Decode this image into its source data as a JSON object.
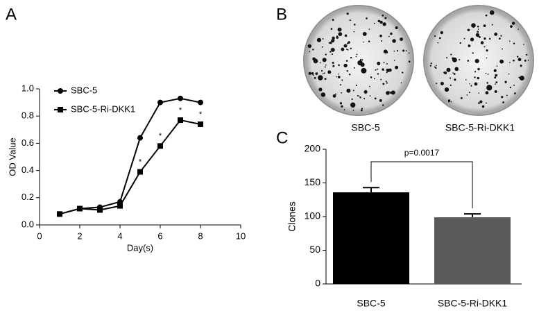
{
  "chart_data": [
    {
      "panel": "A",
      "type": "line",
      "xlabel": "Day(s)",
      "ylabel": "OD Value",
      "x": [
        1,
        2,
        3,
        4,
        5,
        6,
        7,
        8
      ],
      "series": [
        {
          "name": "SBC-5",
          "color": "#000000",
          "marker": "circle",
          "values": [
            0.08,
            0.12,
            0.13,
            0.17,
            0.64,
            0.9,
            0.93,
            0.9
          ]
        },
        {
          "name": "SBC-5-Ri-DKK1",
          "color": "#000000",
          "marker": "square",
          "values": [
            0.08,
            0.12,
            0.11,
            0.14,
            0.39,
            0.58,
            0.77,
            0.74
          ]
        }
      ],
      "annotations": [
        {
          "text": "*",
          "x": 5
        },
        {
          "text": "*",
          "x": 6
        },
        {
          "text": "*",
          "x": 7
        },
        {
          "text": "*",
          "x": 8
        }
      ],
      "xlim": [
        0,
        10
      ],
      "xticks": [
        0,
        2,
        4,
        6,
        8,
        10
      ],
      "ylim": [
        0,
        1
      ],
      "yticks": [
        {
          "value": 0,
          "label": "0.0"
        },
        0.2,
        0.4,
        0.6,
        0.8,
        {
          "value": 1,
          "label": "1.0"
        }
      ],
      "legend": "upper-left"
    },
    {
      "panel": "B",
      "type": "image",
      "labels": [
        "SBC-5",
        "SBC-5-Ri-DKK1"
      ]
    },
    {
      "panel": "C",
      "type": "bar",
      "ylabel": "Clones",
      "categories": [
        "SBC-5",
        "SBC-5-Ri-DKK1"
      ],
      "values": [
        136,
        99
      ],
      "errors": [
        7,
        5
      ],
      "colors": [
        "#000000",
        "#5a5a5a"
      ],
      "ylim": [
        0,
        200
      ],
      "yticks": [
        0,
        50,
        100,
        150,
        200
      ],
      "annotation": "p=0.0017"
    }
  ]
}
